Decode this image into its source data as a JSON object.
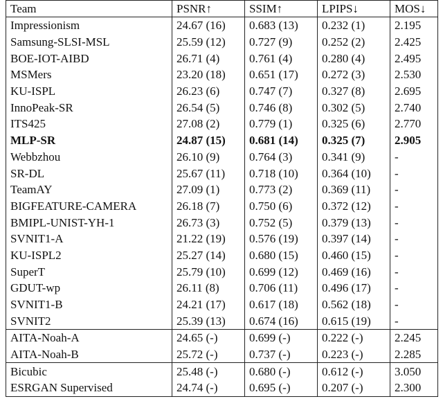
{
  "table": {
    "header": [
      "Team",
      "PSNR↑",
      "SSIM↑",
      "LPIPS↓",
      "MOS↓"
    ],
    "sections": [
      [
        {
          "cells": [
            "Impressionism",
            "24.67 (16)",
            "0.683 (13)",
            "0.232 (1)",
            "2.195"
          ]
        },
        {
          "cells": [
            "Samsung-SLSI-MSL",
            "25.59 (12)",
            "0.727 (9)",
            "0.252 (2)",
            "2.425"
          ]
        },
        {
          "cells": [
            "BOE-IOT-AIBD",
            "26.71 (4)",
            "0.761 (4)",
            "0.280 (4)",
            "2.495"
          ]
        },
        {
          "cells": [
            "MSMers",
            "23.20 (18)",
            "0.651 (17)",
            "0.272 (3)",
            "2.530"
          ]
        },
        {
          "cells": [
            "KU-ISPL",
            "26.23 (6)",
            "0.747 (7)",
            "0.327 (8)",
            "2.695"
          ]
        },
        {
          "cells": [
            "InnoPeak-SR",
            "26.54 (5)",
            "0.746 (8)",
            "0.302 (5)",
            "2.740"
          ]
        },
        {
          "cells": [
            "ITS425",
            "27.08 (2)",
            "0.779 (1)",
            "0.325 (6)",
            "2.770"
          ]
        },
        {
          "cells": [
            "MLP-SR",
            "24.87 (15)",
            "0.681 (14)",
            "0.325 (7)",
            "2.905"
          ],
          "bold": true
        },
        {
          "cells": [
            "Webbzhou",
            "26.10 (9)",
            "0.764 (3)",
            "0.341 (9)",
            "-"
          ]
        },
        {
          "cells": [
            "SR-DL",
            "25.67 (11)",
            "0.718 (10)",
            "0.364 (10)",
            "-"
          ]
        },
        {
          "cells": [
            "TeamAY",
            "27.09 (1)",
            "0.773 (2)",
            "0.369 (11)",
            "-"
          ]
        },
        {
          "cells": [
            "BIGFEATURE-CAMERA",
            "26.18 (7)",
            "0.750 (6)",
            "0.372 (12)",
            "-"
          ]
        },
        {
          "cells": [
            "BMIPL-UNIST-YH-1",
            "26.73 (3)",
            "0.752 (5)",
            "0.379 (13)",
            "-"
          ]
        },
        {
          "cells": [
            "SVNIT1-A",
            "21.22 (19)",
            "0.576 (19)",
            "0.397 (14)",
            "-"
          ]
        },
        {
          "cells": [
            "KU-ISPL2",
            "25.27 (14)",
            "0.680 (15)",
            "0.460 (15)",
            "-"
          ]
        },
        {
          "cells": [
            "SuperT",
            "25.79 (10)",
            "0.699 (12)",
            "0.469 (16)",
            "-"
          ]
        },
        {
          "cells": [
            "GDUT-wp",
            "26.11 (8)",
            "0.706 (11)",
            "0.496 (17)",
            "-"
          ]
        },
        {
          "cells": [
            "SVNIT1-B",
            "24.21 (17)",
            "0.617 (18)",
            "0.562 (18)",
            "-"
          ]
        },
        {
          "cells": [
            "SVNIT2",
            "25.39 (13)",
            "0.674 (16)",
            "0.615 (19)",
            "-"
          ]
        }
      ],
      [
        {
          "cells": [
            "AITA-Noah-A",
            "24.65 (-)",
            "0.699 (-)",
            "0.222 (-)",
            "2.245"
          ]
        },
        {
          "cells": [
            "AITA-Noah-B",
            "25.72 (-)",
            "0.737 (-)",
            "0.223 (-)",
            "2.285"
          ]
        }
      ],
      [
        {
          "cells": [
            "Bicubic",
            "25.48 (-)",
            "0.680 (-)",
            "0.612 (-)",
            "3.050"
          ]
        },
        {
          "cells": [
            "ESRGAN Supervised",
            "24.74 (-)",
            "0.695 (-)",
            "0.207 (-)",
            "2.300"
          ]
        }
      ]
    ]
  }
}
